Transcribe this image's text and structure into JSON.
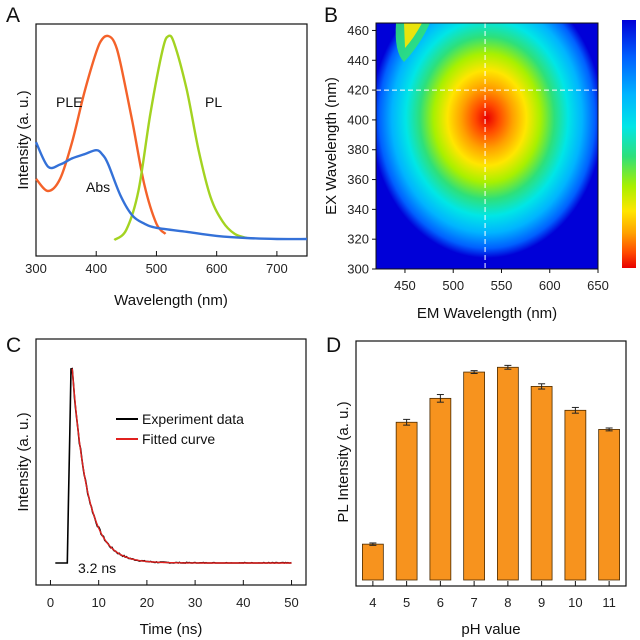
{
  "chart_data": [
    {
      "panel": "A",
      "type": "line",
      "xlabel": "Wavelength (nm)",
      "ylabel": "Intensity (a. u.)",
      "xlim": [
        300,
        750
      ],
      "ylim": [
        0,
        1
      ],
      "xticks": [
        300,
        400,
        500,
        600,
        700
      ],
      "series": [
        {
          "name": "PLE",
          "color": "#f4622a",
          "x": [
            300,
            320,
            340,
            360,
            380,
            400,
            410,
            420,
            430,
            440,
            460,
            480,
            500,
            515
          ],
          "y": [
            0.3,
            0.24,
            0.3,
            0.48,
            0.72,
            0.92,
            0.985,
            1.0,
            0.97,
            0.87,
            0.58,
            0.27,
            0.08,
            0.03
          ]
        },
        {
          "name": "PL",
          "color": "#a3d321",
          "x": [
            430,
            450,
            470,
            490,
            510,
            520,
            530,
            550,
            570,
            590,
            610,
            630,
            650
          ],
          "y": [
            0.0,
            0.05,
            0.24,
            0.62,
            0.93,
            1.0,
            0.96,
            0.74,
            0.44,
            0.21,
            0.09,
            0.03,
            0.01
          ]
        },
        {
          "name": "Abs",
          "color": "#3471d8",
          "x": [
            300,
            320,
            340,
            360,
            380,
            400,
            410,
            420,
            440,
            460,
            480,
            500,
            550,
            600,
            650,
            700,
            750
          ],
          "y": [
            0.48,
            0.36,
            0.37,
            0.4,
            0.42,
            0.44,
            0.42,
            0.37,
            0.22,
            0.12,
            0.08,
            0.06,
            0.04,
            0.02,
            0.01,
            0.005,
            0.005
          ]
        }
      ],
      "annotations": [
        "PLE",
        "PL",
        "Abs"
      ]
    },
    {
      "panel": "B",
      "type": "heatmap",
      "xlabel": "EM Wavelength (nm)",
      "ylabel": "EX Wavelength (nm)",
      "xlim": [
        420,
        650
      ],
      "ylim": [
        300,
        465
      ],
      "xticks": [
        450,
        500,
        550,
        600,
        650
      ],
      "yticks": [
        300,
        320,
        340,
        360,
        380,
        400,
        420,
        440,
        460
      ],
      "peak": {
        "em": 533,
        "ex": 420
      },
      "colorbar": [
        "#0000d8",
        "#0060ff",
        "#00b4ff",
        "#00e6e6",
        "#2ee07a",
        "#a8f000",
        "#ffe600",
        "#ffa000",
        "#ff4800",
        "#e80000"
      ]
    },
    {
      "panel": "C",
      "type": "line",
      "xlabel": "Time (ns)",
      "ylabel": "Intensity (a. u.)",
      "xlim": [
        -3,
        53
      ],
      "ylim": [
        0,
        1
      ],
      "xticks": [
        0,
        10,
        20,
        30,
        40,
        50
      ],
      "rise_at": 3.5,
      "peak_at": 4.3,
      "tau": 3.2,
      "series": [
        {
          "name": "Experiment data",
          "color": "#000000"
        },
        {
          "name": "Fitted curve",
          "color": "#e0211f"
        }
      ],
      "annotation": "3.2 ns"
    },
    {
      "panel": "D",
      "type": "bar",
      "xlabel": "pH value",
      "ylabel": "PL Intensity (a. u.)",
      "categories": [
        "4",
        "5",
        "6",
        "7",
        "8",
        "9",
        "10",
        "11"
      ],
      "values": [
        0.15,
        0.66,
        0.76,
        0.87,
        0.89,
        0.81,
        0.71,
        0.63
      ],
      "errors": [
        0.005,
        0.012,
        0.016,
        0.006,
        0.008,
        0.011,
        0.012,
        0.006
      ],
      "ylim": [
        0,
        1
      ],
      "color": "#f7931e"
    }
  ]
}
